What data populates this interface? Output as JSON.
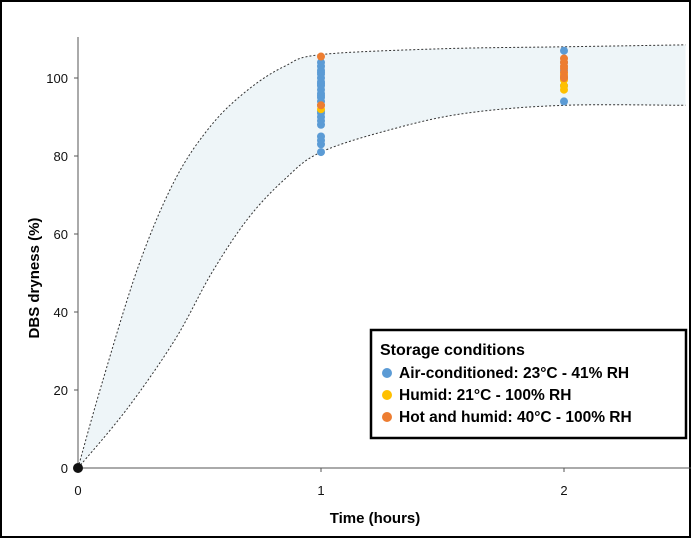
{
  "chart_data": {
    "type": "scatter",
    "xlabel": "Time (hours)",
    "ylabel": "DBS dryness (%)",
    "xlim": [
      0,
      2.5
    ],
    "ylim": [
      0,
      110
    ],
    "x_ticks": [
      "0",
      "1",
      "2"
    ],
    "y_ticks": [
      "0",
      "20",
      "40",
      "60",
      "80",
      "100"
    ],
    "grid": false,
    "legend_position": "bottom-right",
    "legend_title": "Storage conditions",
    "band": {
      "upper": [
        [
          0,
          0
        ],
        [
          0.1,
          22
        ],
        [
          0.25,
          52
        ],
        [
          0.4,
          74
        ],
        [
          0.55,
          88
        ],
        [
          0.7,
          97
        ],
        [
          0.85,
          103
        ],
        [
          1.0,
          106
        ],
        [
          1.5,
          107.5
        ],
        [
          2.0,
          108
        ],
        [
          2.5,
          108.5
        ]
      ],
      "lower": [
        [
          0,
          0
        ],
        [
          0.2,
          15
        ],
        [
          0.4,
          33
        ],
        [
          0.55,
          50
        ],
        [
          0.7,
          64
        ],
        [
          0.85,
          74
        ],
        [
          1.0,
          81
        ],
        [
          1.3,
          87
        ],
        [
          1.6,
          91
        ],
        [
          2.0,
          93
        ],
        [
          2.5,
          93
        ]
      ]
    },
    "series": [
      {
        "name": "Air-conditioned: 23°C - 41% RH",
        "color": "#5b9bd5",
        "points": [
          [
            0,
            0
          ],
          [
            1,
            104
          ],
          [
            1,
            103
          ],
          [
            1,
            102
          ],
          [
            1,
            101.5
          ],
          [
            1,
            101
          ],
          [
            1,
            100
          ],
          [
            1,
            99
          ],
          [
            1,
            98.5
          ],
          [
            1,
            98
          ],
          [
            1,
            97
          ],
          [
            1,
            96
          ],
          [
            1,
            95.5
          ],
          [
            1,
            95
          ],
          [
            1,
            94
          ],
          [
            1,
            93
          ],
          [
            1,
            91.5
          ],
          [
            1,
            91
          ],
          [
            1,
            90
          ],
          [
            1,
            89
          ],
          [
            1,
            88
          ],
          [
            1,
            85
          ],
          [
            1,
            84
          ],
          [
            1,
            83
          ],
          [
            1,
            81
          ],
          [
            2,
            107
          ],
          [
            2,
            104
          ],
          [
            2,
            102
          ],
          [
            2,
            100
          ],
          [
            2,
            98
          ],
          [
            2,
            94
          ]
        ]
      },
      {
        "name": "Humid: 21°C - 100% RH",
        "color": "#ffc000",
        "points": [
          [
            1,
            92
          ],
          [
            2,
            101
          ],
          [
            2,
            99.5
          ],
          [
            2,
            98
          ],
          [
            2,
            97
          ]
        ]
      },
      {
        "name": "Hot and humid: 40°C - 100% RH",
        "color": "#ed7d31",
        "points": [
          [
            1,
            105.5
          ],
          [
            1,
            93
          ],
          [
            2,
            105
          ],
          [
            2,
            104
          ],
          [
            2,
            103
          ],
          [
            2,
            102.5
          ],
          [
            2,
            101.5
          ],
          [
            2,
            100.5
          ],
          [
            2,
            100
          ]
        ]
      }
    ]
  }
}
